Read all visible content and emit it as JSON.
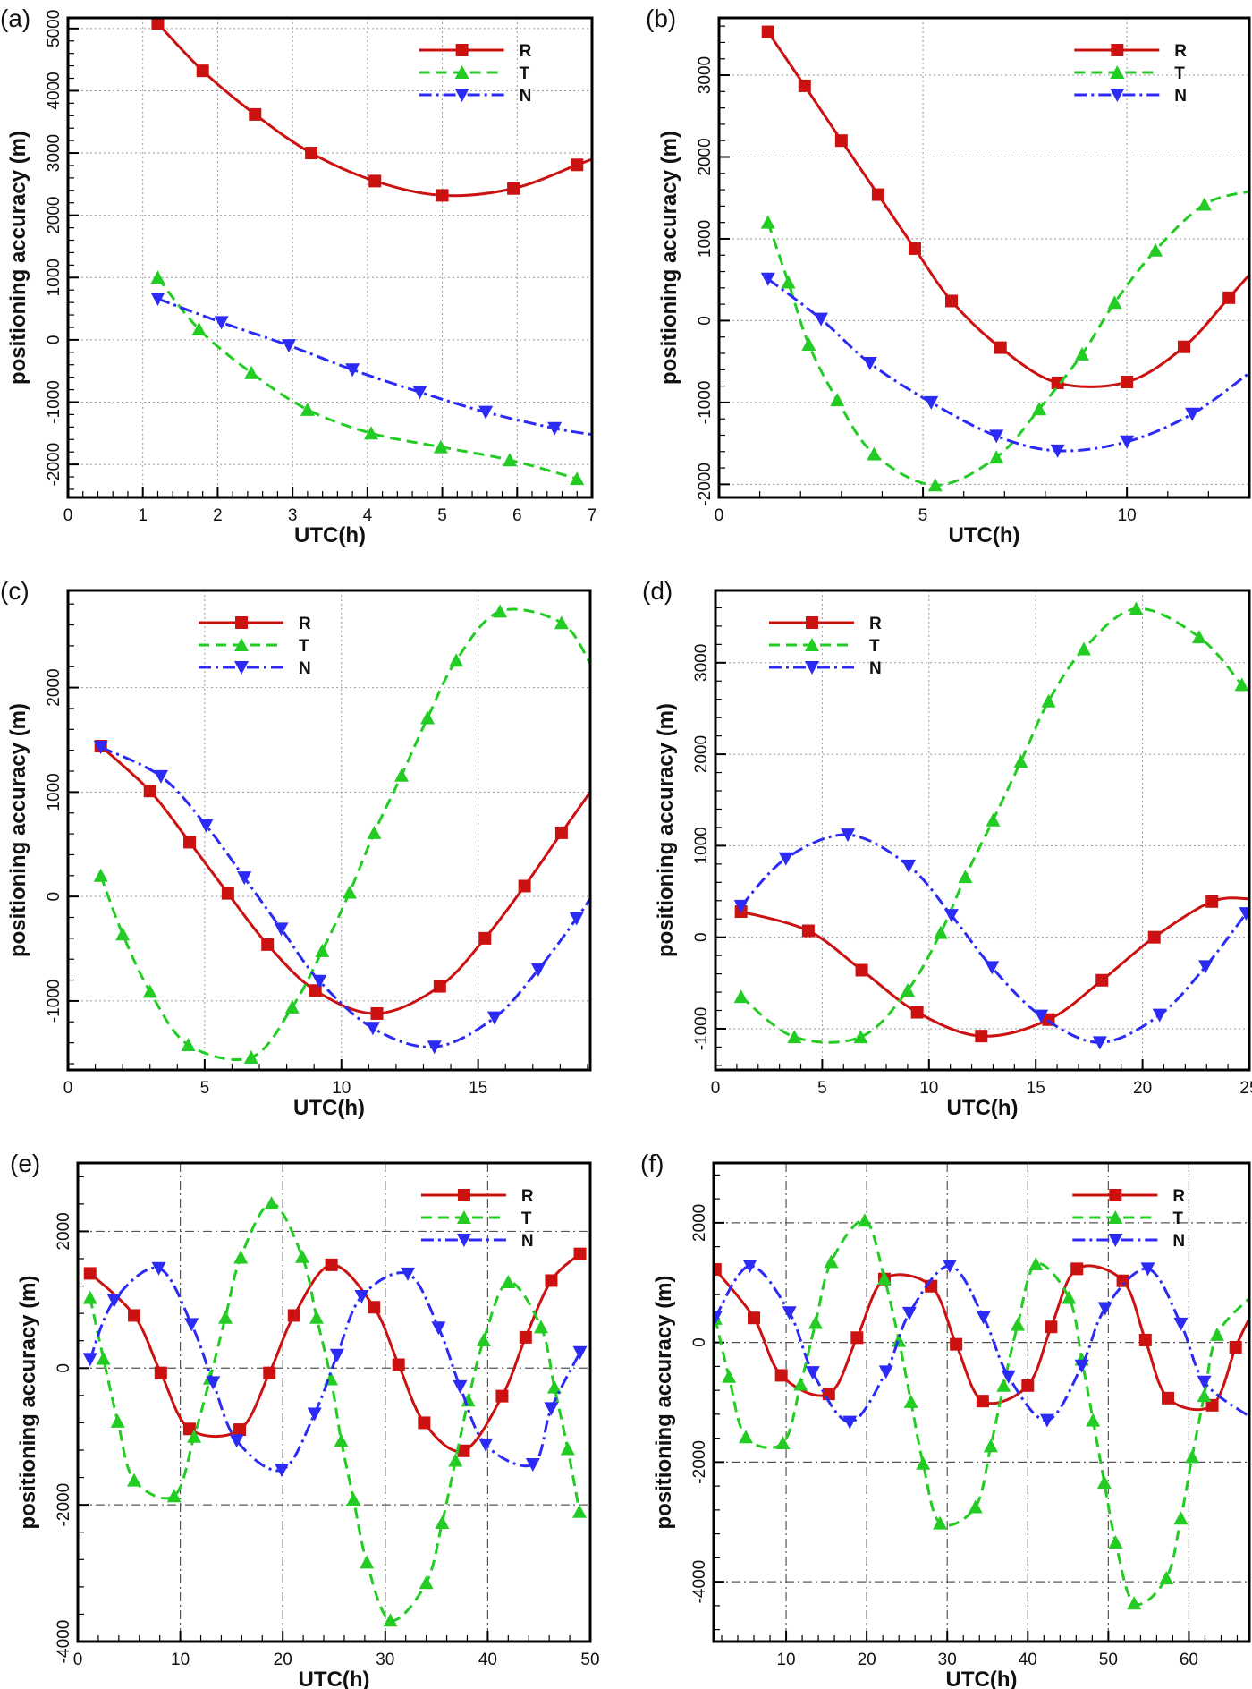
{
  "colors": {
    "R": "#cc1111",
    "T": "#22cc22",
    "N": "#2b2bf5",
    "grid": "#9a9a9a",
    "grid_major": "#555555"
  },
  "chart_data": [
    {
      "panel_label": "(a)",
      "type": "line",
      "xlabel": "UTC(h)",
      "ylabel": "positioning accuracy (m)",
      "xlim": [
        0,
        7
      ],
      "ylim": [
        -2530,
        5170
      ],
      "xticks": [
        0,
        1,
        2,
        3,
        4,
        5,
        6,
        7
      ],
      "yticks": [
        -2000,
        -1000,
        0,
        1000,
        2000,
        3000,
        4000,
        5000
      ],
      "grid": "dotted",
      "legend": "top-right",
      "series": [
        {
          "name": "R",
          "marker": "square",
          "x": [
            1.2,
            1.8,
            2.5,
            3.25,
            4.1,
            5.0,
            5.95,
            6.8,
            7.0
          ],
          "y": [
            5080,
            4320,
            3620,
            3000,
            2550,
            2320,
            2430,
            2810,
            2900
          ]
        },
        {
          "name": "T",
          "marker": "triangle-up",
          "x": [
            1.2,
            1.75,
            2.45,
            3.2,
            4.05,
            4.98,
            5.9,
            6.8
          ],
          "y": [
            1000,
            170,
            -530,
            -1120,
            -1500,
            -1720,
            -1930,
            -2230
          ]
        },
        {
          "name": "N",
          "marker": "triangle-down",
          "x": [
            1.2,
            2.05,
            2.95,
            3.8,
            4.7,
            5.58,
            6.5,
            7.0
          ],
          "y": [
            660,
            280,
            -90,
            -480,
            -840,
            -1160,
            -1420,
            -1520
          ]
        }
      ]
    },
    {
      "panel_label": "(b)",
      "type": "line",
      "xlabel": "UTC(h)",
      "ylabel": "positioning accuracy (m)",
      "xlim": [
        0,
        13
      ],
      "ylim": [
        -2160,
        3700
      ],
      "xticks": [
        0,
        5,
        10
      ],
      "yticks": [
        -2000,
        -1000,
        0,
        1000,
        2000,
        3000
      ],
      "grid": "dotted",
      "legend": "top-right",
      "series": [
        {
          "name": "R",
          "marker": "square",
          "x": [
            1.2,
            2.1,
            3.0,
            3.9,
            4.8,
            5.7,
            6.9,
            8.3,
            10.0,
            11.4,
            12.5,
            13.0
          ],
          "y": [
            3530,
            2870,
            2200,
            1540,
            880,
            240,
            -330,
            -760,
            -750,
            -320,
            280,
            560
          ]
        },
        {
          "name": "T",
          "marker": "triangle-up",
          "x": [
            1.2,
            1.7,
            2.2,
            2.9,
            3.8,
            5.3,
            6.8,
            7.85,
            8.9,
            9.7,
            10.7,
            11.9,
            13.0
          ],
          "y": [
            1200,
            470,
            -290,
            -970,
            -1630,
            -2010,
            -1670,
            -1080,
            -410,
            220,
            860,
            1420,
            1580
          ]
        },
        {
          "name": "N",
          "marker": "triangle-down",
          "x": [
            1.2,
            2.5,
            3.7,
            5.2,
            6.8,
            8.3,
            10.0,
            11.6,
            13.0
          ],
          "y": [
            510,
            20,
            -520,
            -1000,
            -1410,
            -1590,
            -1480,
            -1140,
            -640
          ]
        }
      ]
    },
    {
      "panel_label": "(c)",
      "type": "line",
      "xlabel": "UTC(h)",
      "ylabel": "positioning accuracy (m)",
      "xlim": [
        0,
        19.1
      ],
      "ylim": [
        -1660,
        2930
      ],
      "xticks": [
        0,
        5,
        10,
        15
      ],
      "yticks": [
        -1000,
        0,
        1000,
        2000
      ],
      "grid": "dotted",
      "legend": "top-center",
      "series": [
        {
          "name": "R",
          "marker": "square",
          "x": [
            1.2,
            3.0,
            4.45,
            5.85,
            7.3,
            9.05,
            11.3,
            13.6,
            15.25,
            16.7,
            18.05,
            19.1
          ],
          "y": [
            1440,
            1010,
            520,
            30,
            -460,
            -900,
            -1120,
            -860,
            -400,
            100,
            610,
            1000
          ]
        },
        {
          "name": "T",
          "marker": "triangle-up",
          "x": [
            1.2,
            2.0,
            3.0,
            4.4,
            6.7,
            8.2,
            9.3,
            10.3,
            11.2,
            12.2,
            13.15,
            14.2,
            15.8,
            18.05,
            19.1
          ],
          "y": [
            200,
            -360,
            -910,
            -1420,
            -1540,
            -1060,
            -520,
            40,
            610,
            1160,
            1710,
            2260,
            2730,
            2620,
            2230
          ]
        },
        {
          "name": "N",
          "marker": "triangle-down",
          "x": [
            1.2,
            3.4,
            5.05,
            6.45,
            7.8,
            9.2,
            11.15,
            13.4,
            15.6,
            17.2,
            18.6,
            19.1
          ],
          "y": [
            1430,
            1150,
            680,
            180,
            -310,
            -810,
            -1260,
            -1440,
            -1160,
            -700,
            -210,
            -20
          ]
        }
      ]
    },
    {
      "panel_label": "(d)",
      "type": "line",
      "xlabel": "UTC(h)",
      "ylabel": "positioning accuracy (m)",
      "xlim": [
        0,
        25
      ],
      "ylim": [
        -1450,
        3790
      ],
      "xticks": [
        0,
        5,
        10,
        15,
        20,
        25
      ],
      "yticks": [
        -1000,
        0,
        1000,
        2000,
        3000
      ],
      "grid": "dotted",
      "legend": "top-left",
      "series": [
        {
          "name": "R",
          "marker": "square",
          "x": [
            1.2,
            4.35,
            6.85,
            9.45,
            12.45,
            15.6,
            18.1,
            20.55,
            23.25,
            25.0
          ],
          "y": [
            280,
            70,
            -360,
            -820,
            -1080,
            -900,
            -470,
            0,
            390,
            420
          ]
        },
        {
          "name": "T",
          "marker": "triangle-up",
          "x": [
            1.2,
            3.7,
            6.8,
            9.0,
            10.55,
            11.7,
            13.0,
            14.3,
            15.6,
            17.25,
            19.7,
            22.65,
            24.65
          ],
          "y": [
            -650,
            -1090,
            -1090,
            -580,
            50,
            660,
            1280,
            1920,
            2580,
            3150,
            3590,
            3280,
            2760
          ]
        },
        {
          "name": "N",
          "marker": "triangle-down",
          "x": [
            1.2,
            3.3,
            6.2,
            9.05,
            11.05,
            12.95,
            15.25,
            18.0,
            20.8,
            22.95,
            24.85
          ],
          "y": [
            340,
            860,
            1120,
            780,
            240,
            -330,
            -860,
            -1150,
            -850,
            -320,
            260
          ]
        }
      ]
    },
    {
      "panel_label": "(e)",
      "type": "line",
      "xlabel": "UTC(h)",
      "ylabel": "positioning accuracy (m)",
      "xlim": [
        0,
        50
      ],
      "ylim": [
        -4000,
        3000
      ],
      "xticks": [
        0,
        10,
        20,
        30,
        40,
        50
      ],
      "yticks": [
        -4000,
        -2000,
        0,
        2000
      ],
      "grid": "dash-dot",
      "legend": "top-right",
      "series": [
        {
          "name": "R",
          "marker": "square",
          "x": [
            1.2,
            5.5,
            8.1,
            10.9,
            15.8,
            18.7,
            21.1,
            24.75,
            28.9,
            31.3,
            33.8,
            37.65,
            41.4,
            43.7,
            46.2,
            49.0
          ],
          "y": [
            1385,
            770,
            -70,
            -890,
            -900,
            -70,
            770,
            1510,
            890,
            50,
            -800,
            -1210,
            -410,
            450,
            1280,
            1670
          ]
        },
        {
          "name": "T",
          "marker": "triangle-up",
          "x": [
            1.2,
            2.5,
            3.9,
            5.5,
            9.4,
            11.35,
            12.9,
            14.4,
            15.9,
            18.9,
            21.9,
            23.3,
            24.7,
            25.7,
            26.9,
            28.2,
            30.5,
            34.0,
            35.55,
            36.85,
            38.1,
            39.6,
            42.0,
            45.2,
            46.5,
            47.8,
            48.95
          ],
          "y": [
            1030,
            140,
            -780,
            -1640,
            -1870,
            -1000,
            -150,
            740,
            1620,
            2410,
            1630,
            740,
            -160,
            -1060,
            -1920,
            -2840,
            -3690,
            -3140,
            -2260,
            -1350,
            -470,
            410,
            1260,
            600,
            -280,
            -1180,
            -2100
          ]
        },
        {
          "name": "N",
          "marker": "triangle-down",
          "x": [
            1.2,
            3.55,
            7.9,
            11.1,
            13.2,
            15.5,
            19.9,
            23.1,
            25.3,
            27.7,
            32.2,
            35.2,
            37.3,
            39.8,
            44.4,
            46.2,
            49.0
          ],
          "y": [
            130,
            990,
            1460,
            640,
            -210,
            -1060,
            -1490,
            -670,
            190,
            1050,
            1380,
            590,
            -270,
            -1120,
            -1410,
            -590,
            230
          ]
        }
      ]
    },
    {
      "panel_label": "(f)",
      "type": "line",
      "xlabel": "UTC(h)",
      "ylabel": "positioning accuracy (m)",
      "xlim": [
        1,
        67.5
      ],
      "ylim": [
        -5000,
        3000
      ],
      "xticks": [
        10,
        20,
        30,
        40,
        50,
        60
      ],
      "yticks": [
        -4000,
        -2000,
        0,
        2000
      ],
      "grid": "dash-dot",
      "legend": "top-right",
      "series": [
        {
          "name": "R",
          "marker": "square",
          "x": [
            1.2,
            6.0,
            9.4,
            15.3,
            18.8,
            22.2,
            28.0,
            31.1,
            34.4,
            40.0,
            42.9,
            46.1,
            51.8,
            54.6,
            57.4,
            62.9,
            65.8,
            67.5
          ],
          "y": [
            1220,
            410,
            -550,
            -860,
            80,
            1060,
            940,
            -30,
            -980,
            -720,
            260,
            1230,
            1030,
            40,
            -930,
            -1050,
            -80,
            400
          ]
        },
        {
          "name": "T",
          "marker": "triangle-up",
          "x": [
            1.2,
            2.9,
            5.0,
            9.6,
            11.8,
            13.65,
            15.6,
            19.75,
            22.2,
            24.0,
            25.5,
            27.0,
            29.1,
            33.5,
            35.4,
            37.0,
            38.75,
            41.0,
            45.1,
            46.7,
            48.1,
            49.5,
            50.9,
            53.2,
            57.2,
            59.0,
            60.4,
            61.9,
            63.5,
            67.5
          ],
          "y": [
            400,
            -570,
            -1580,
            -1680,
            -700,
            330,
            1350,
            2040,
            1070,
            30,
            -990,
            -2020,
            -3020,
            -2750,
            -1730,
            -720,
            300,
            1310,
            750,
            -280,
            -1300,
            -2340,
            -3340,
            -4360,
            -3940,
            -2940,
            -1910,
            -890,
            130,
            740
          ]
        },
        {
          "name": "N",
          "marker": "triangle-down",
          "x": [
            1.2,
            5.5,
            10.4,
            13.3,
            17.9,
            22.4,
            25.3,
            30.3,
            34.5,
            37.6,
            42.4,
            46.7,
            49.6,
            54.9,
            59.0,
            61.9,
            67.4
          ],
          "y": [
            420,
            1280,
            500,
            -500,
            -1330,
            -490,
            490,
            1280,
            420,
            -570,
            -1300,
            -390,
            570,
            1230,
            310,
            -660,
            -1230
          ]
        }
      ]
    }
  ]
}
